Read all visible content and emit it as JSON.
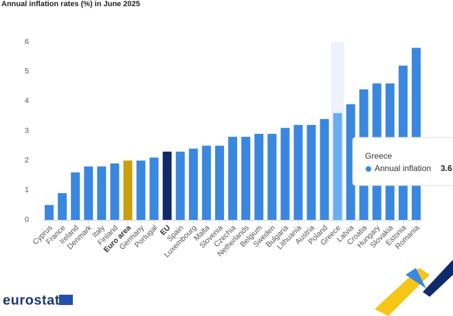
{
  "chart_data": {
    "type": "bar",
    "title": "Annual inflation rates (%) in June 2025",
    "categories": [
      "Cyprus",
      "France",
      "Ireland",
      "Denmark",
      "Italy",
      "Finland",
      "Euro area",
      "Germany",
      "Portugal",
      "EU",
      "Spain",
      "Luxembourg",
      "Malta",
      "Slovenia",
      "Czechia",
      "Netherlands",
      "Belgium",
      "Sweden",
      "Bulgaria",
      "Lithuania",
      "Austria",
      "Poland",
      "Greece",
      "Latvia",
      "Croatia",
      "Hungary",
      "Slovakia",
      "Estonia",
      "Romania"
    ],
    "series": [
      {
        "name": "Annual inflation",
        "color": "#3a87e0",
        "values": [
          0.5,
          0.9,
          1.6,
          1.8,
          1.8,
          1.9,
          2.0,
          2.0,
          2.1,
          2.3,
          2.3,
          2.4,
          2.5,
          2.5,
          2.8,
          2.8,
          2.9,
          2.9,
          3.1,
          3.2,
          3.2,
          3.4,
          3.6,
          3.9,
          4.4,
          4.6,
          4.6,
          5.2,
          5.8
        ],
        "colors": [
          "#3a87e0",
          "#3a87e0",
          "#3a87e0",
          "#3a87e0",
          "#3a87e0",
          "#3a87e0",
          "#c9a00c",
          "#3a87e0",
          "#3a87e0",
          "#0e2a6b",
          "#3a87e0",
          "#3a87e0",
          "#3a87e0",
          "#3a87e0",
          "#3a87e0",
          "#3a87e0",
          "#3a87e0",
          "#3a87e0",
          "#3a87e0",
          "#3a87e0",
          "#3a87e0",
          "#3a87e0",
          "#6aaef2",
          "#3a87e0",
          "#3a87e0",
          "#3a87e0",
          "#3a87e0",
          "#3a87e0",
          "#3a87e0"
        ]
      }
    ],
    "ylim": [
      0,
      6
    ],
    "yticks": [
      0,
      1,
      2,
      3,
      4,
      5,
      6
    ],
    "grid": false
  },
  "brand": "eurostat"
}
